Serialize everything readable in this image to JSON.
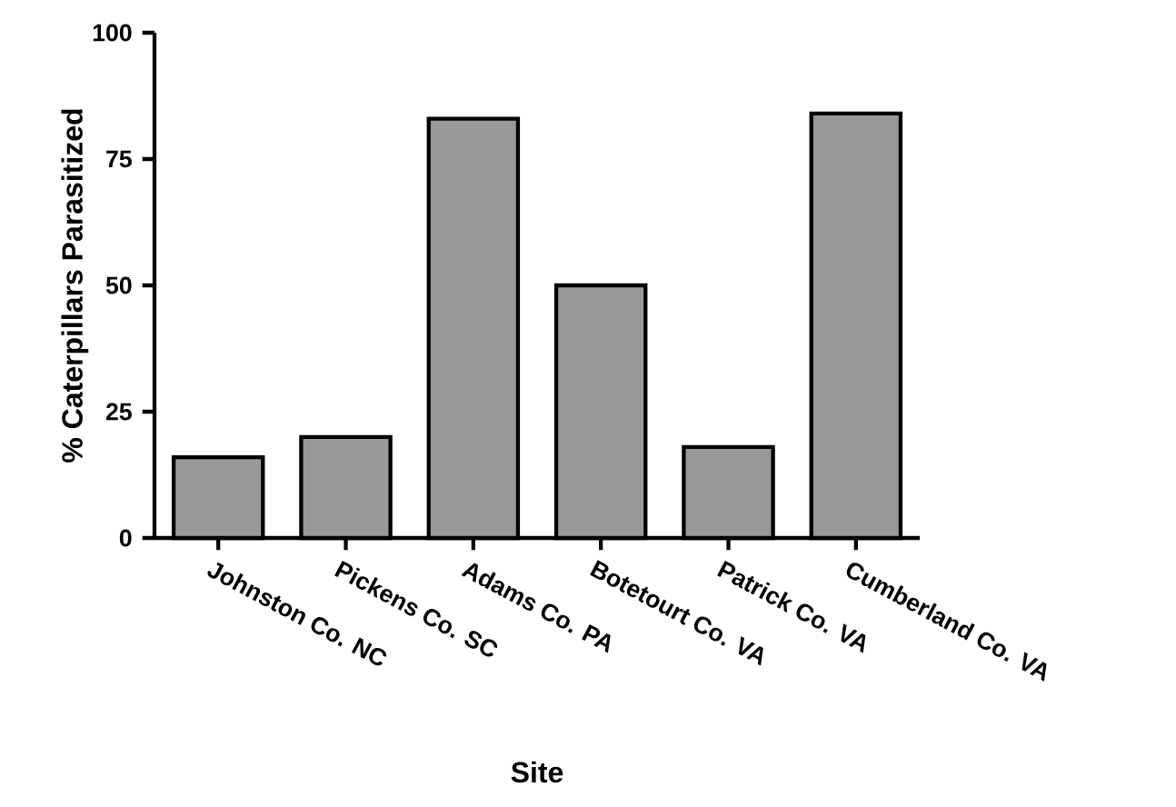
{
  "chart_data": {
    "type": "bar",
    "xlabel": "Site",
    "ylabel": "% Caterpillars Parasitized",
    "categories": [
      "Johnston Co. NC",
      "Pickens Co. SC",
      "Adams Co. PA",
      "Botetourt Co. VA",
      "Patrick Co. VA",
      "Cumberland Co. VA"
    ],
    "values": [
      16,
      20,
      83,
      50,
      18,
      84
    ],
    "color": "#999999",
    "ylim": [
      0,
      100
    ],
    "yticks": [
      0,
      25,
      50,
      75,
      100
    ]
  }
}
